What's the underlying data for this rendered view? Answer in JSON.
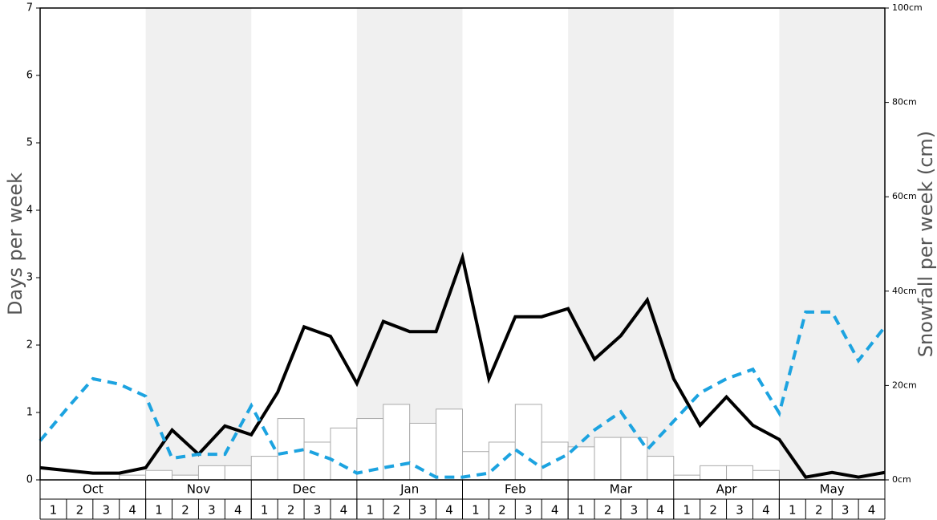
{
  "chart_data": {
    "type": "combo",
    "y_label": "Days per week",
    "y2_label": "Snowfall per week (cm)",
    "months": [
      "Oct",
      "Nov",
      "Dec",
      "Jan",
      "Feb",
      "Mar",
      "Apr",
      "May"
    ],
    "categories": [
      "1",
      "2",
      "3",
      "4",
      "1",
      "2",
      "3",
      "4",
      "1",
      "2",
      "3",
      "4",
      "1",
      "2",
      "3",
      "4",
      "1",
      "2",
      "3",
      "4",
      "1",
      "2",
      "3",
      "4",
      "1",
      "2",
      "3",
      "4",
      "1",
      "2",
      "3",
      "4"
    ],
    "xlim": [
      0,
      32
    ],
    "ylim": [
      0,
      7
    ],
    "yticks": [
      0,
      1,
      2,
      3,
      4,
      5,
      6,
      7
    ],
    "y2lim": [
      0,
      100
    ],
    "y2ticks": [
      {
        "value": 0,
        "label": "0cm"
      },
      {
        "value": 20,
        "label": "20cm"
      },
      {
        "value": 40,
        "label": "40cm"
      },
      {
        "value": 60,
        "label": "60cm"
      },
      {
        "value": 80,
        "label": "80cm"
      },
      {
        "value": 100,
        "label": "100cm"
      }
    ],
    "shade_color": "#f0f0f0",
    "series": [
      {
        "type": "bar",
        "axis": "y2",
        "color": "#ffffff",
        "edge_color": "#aaaaaa",
        "values": [
          0,
          0,
          0,
          1,
          2,
          1,
          3,
          3,
          5,
          13,
          8,
          11,
          13,
          16,
          12,
          15,
          6,
          8,
          16,
          8,
          7,
          9,
          9,
          5,
          1,
          3,
          3,
          2,
          0,
          0,
          0,
          0
        ]
      },
      {
        "type": "line",
        "color": "#000000",
        "dash": false,
        "x": [
          0,
          1,
          2,
          3,
          4,
          5,
          6,
          7,
          8,
          9,
          10,
          11,
          12,
          13,
          14,
          15,
          16,
          17,
          18,
          19,
          20,
          21,
          22,
          23,
          24,
          25,
          26,
          27,
          28,
          29,
          30,
          31,
          32
        ],
        "values": [
          0.18,
          0.14,
          0.1,
          0.1,
          0.18,
          0.74,
          0.38,
          0.8,
          0.67,
          1.3,
          2.27,
          2.13,
          1.43,
          2.35,
          2.2,
          2.2,
          3.3,
          1.5,
          2.42,
          2.42,
          2.54,
          1.79,
          2.14,
          2.67,
          1.5,
          0.81,
          1.23,
          0.81,
          0.6,
          0.04,
          0.11,
          0.04,
          0.11
        ]
      },
      {
        "type": "line",
        "color": "#1ca3e0",
        "dash": true,
        "x": [
          0,
          1,
          2,
          3,
          4,
          5,
          6,
          7,
          8,
          9,
          10,
          11,
          12,
          13,
          14,
          15,
          16,
          17,
          18,
          19,
          20,
          21,
          22,
          23,
          24,
          25,
          26,
          27,
          28,
          29,
          30,
          31,
          32
        ],
        "values": [
          0.58,
          1.05,
          1.5,
          1.42,
          1.24,
          0.32,
          0.38,
          0.38,
          1.1,
          0.38,
          0.45,
          0.31,
          0.1,
          0.18,
          0.25,
          0.04,
          0.04,
          0.1,
          0.45,
          0.18,
          0.38,
          0.74,
          1.01,
          0.45,
          0.87,
          1.29,
          1.5,
          1.64,
          0.99,
          2.49,
          2.49,
          1.77,
          2.27
        ]
      }
    ]
  }
}
